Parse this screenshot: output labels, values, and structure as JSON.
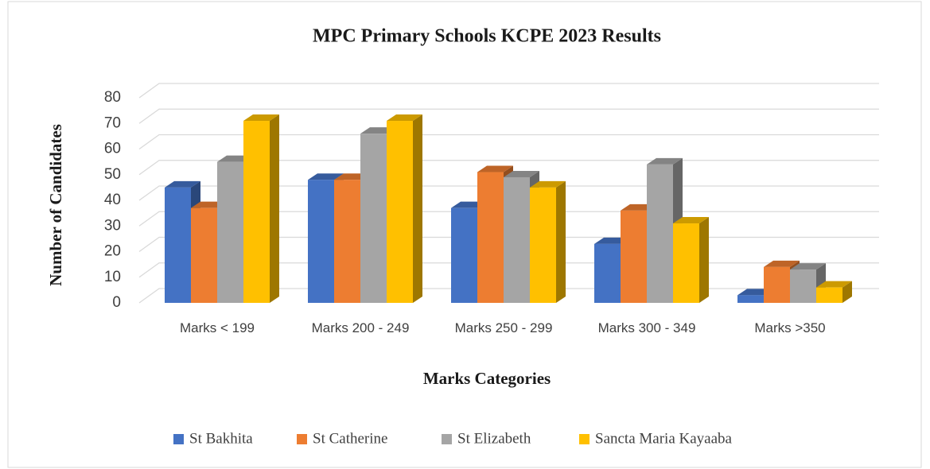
{
  "chart_data": {
    "type": "bar3d",
    "title": "MPC Primary Schools KCPE 2023 Results",
    "x_label": "Marks Categories",
    "y_label": "Number of Candidates",
    "categories": [
      "Marks < 199",
      "Marks 200 - 249",
      "Marks 250 - 299",
      "Marks 300 - 349",
      "Marks >350"
    ],
    "series": [
      {
        "name": "St Bakhita",
        "color": "#4472c4",
        "values": [
          45,
          48,
          37,
          23,
          3
        ]
      },
      {
        "name": "St Catherine",
        "color": "#ed7d31",
        "values": [
          37,
          48,
          51,
          36,
          14
        ]
      },
      {
        "name": "St Elizabeth",
        "color": "#a5a5a5",
        "values": [
          55,
          66,
          49,
          54,
          13
        ]
      },
      {
        "name": "Sancta Maria Kayaaba",
        "color": "#ffc000",
        "values": [
          71,
          71,
          45,
          31,
          6
        ]
      }
    ],
    "ylim": [
      0,
      80
    ],
    "yticks": [
      0,
      10,
      20,
      30,
      40,
      50,
      60,
      70,
      80
    ],
    "grid": true,
    "legend": "bottom"
  }
}
